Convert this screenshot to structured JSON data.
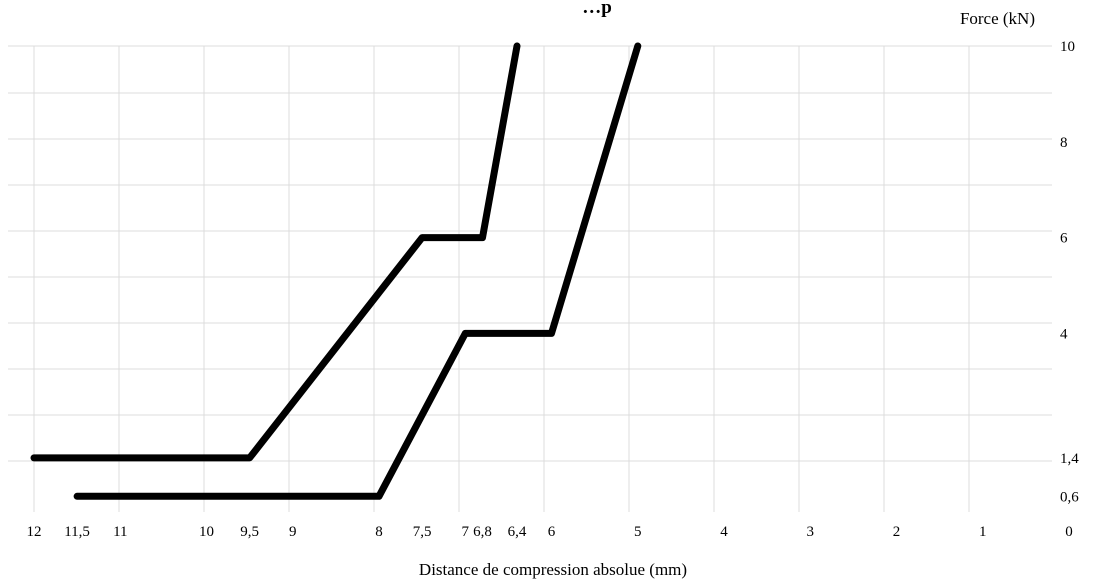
{
  "chart_data": {
    "type": "line",
    "title": "…p",
    "xlabel": "Distance de compression absolue (mm)",
    "ylabel": "Force (kN)",
    "x_reversed": true,
    "xlim": [
      12,
      0
    ],
    "ylim": [
      0,
      10
    ],
    "grid": true,
    "x_ticks": [
      {
        "value": 12,
        "label": "12"
      },
      {
        "value": 11.5,
        "label": "11,5"
      },
      {
        "value": 11,
        "label": "11"
      },
      {
        "value": 10,
        "label": "10"
      },
      {
        "value": 9.5,
        "label": "9,5"
      },
      {
        "value": 9,
        "label": "9"
      },
      {
        "value": 8,
        "label": "8"
      },
      {
        "value": 7.5,
        "label": "7,5"
      },
      {
        "value": 7,
        "label": "7"
      },
      {
        "value": 6.8,
        "label": "6,8"
      },
      {
        "value": 6.4,
        "label": "6,4"
      },
      {
        "value": 6,
        "label": "6"
      },
      {
        "value": 5,
        "label": "5"
      },
      {
        "value": 4,
        "label": "4"
      },
      {
        "value": 3,
        "label": "3"
      },
      {
        "value": 2,
        "label": "2"
      },
      {
        "value": 1,
        "label": "1"
      },
      {
        "value": 0,
        "label": "0"
      }
    ],
    "y_ticks": [
      {
        "value": 10,
        "label": "10"
      },
      {
        "value": 8,
        "label": "8"
      },
      {
        "value": 6,
        "label": "6"
      },
      {
        "value": 4,
        "label": "4"
      },
      {
        "value": 1.4,
        "label": "1,4"
      },
      {
        "value": 0.6,
        "label": "0,6"
      }
    ],
    "series": [
      {
        "color": "#000000",
        "points": [
          [
            12,
            1.4
          ],
          [
            9.5,
            1.4
          ],
          [
            7.5,
            6
          ],
          [
            6.8,
            6
          ],
          [
            6.4,
            10
          ]
        ]
      },
      {
        "color": "#000000",
        "points": [
          [
            11.5,
            0.6
          ],
          [
            8,
            0.6
          ],
          [
            7,
            4
          ],
          [
            6,
            4
          ],
          [
            5,
            10
          ]
        ]
      }
    ]
  }
}
